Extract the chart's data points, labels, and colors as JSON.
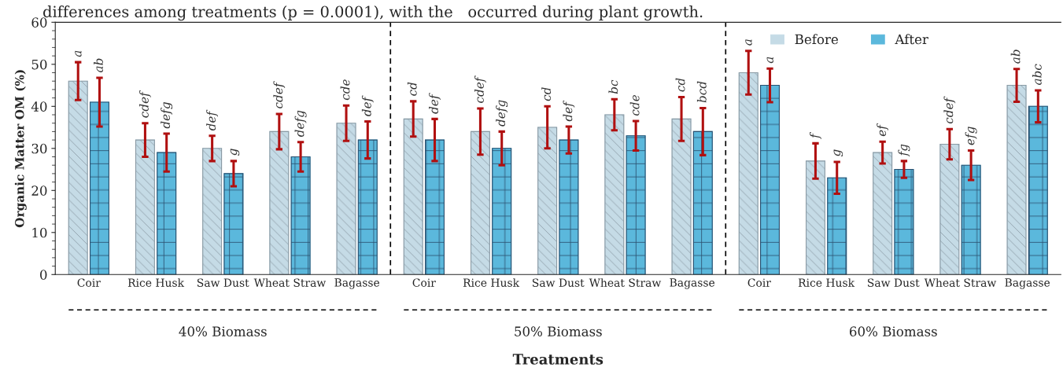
{
  "chart_data": {
    "type": "bar",
    "title": "differences among treatments (p = 0.0001), with the",
    "subtitle": "occurred during plant growth.",
    "xlabel": "Treatments",
    "ylabel": "Organic Matter OM (%)",
    "categories": [
      "Coir",
      "Rice Husk",
      "Saw Dust",
      "Wheat Straw",
      "Bagasse",
      "Coir",
      "Rice Husk",
      "Saw Dust",
      "Wheat Straw",
      "Bagasse",
      "Coir",
      "Rice Husk",
      "Saw Dust",
      "Wheat Straw",
      "Bagasse"
    ],
    "series": [
      {
        "name": "Before",
        "color": "#c5dbe6",
        "values": [
          46,
          32,
          30,
          34,
          36,
          37,
          34,
          35,
          38,
          37,
          48,
          27,
          29,
          31,
          45
        ],
        "errors": [
          4.5,
          4,
          3,
          4.2,
          4.2,
          4.2,
          5.5,
          5,
          3.7,
          5.2,
          5.2,
          4.2,
          2.6,
          3.6,
          3.9
        ],
        "value_labels": [
          "a",
          "cdef",
          "def",
          "cdef",
          "cde",
          "cd",
          "cdef",
          "cd",
          "bc",
          "cd",
          "a",
          "f",
          "ef",
          "cdef",
          "ab"
        ]
      },
      {
        "name": "After",
        "color": "#5bb8dc",
        "values": [
          41,
          29,
          24,
          28,
          32,
          32,
          30,
          32,
          33,
          34,
          45,
          23,
          25,
          26,
          40
        ],
        "errors": [
          5.8,
          4.5,
          3,
          3.5,
          4.4,
          5,
          4,
          3.2,
          3.5,
          5.6,
          4,
          3.8,
          2,
          3.5,
          3.8
        ],
        "value_labels": [
          "ab",
          "defg",
          "g",
          "defg",
          "def",
          "def",
          "defg",
          "def",
          "cde",
          "bcd",
          "a",
          "g",
          "fg",
          "efg",
          "abc"
        ]
      }
    ],
    "annotations": [
      "40% Biomass",
      "50% Biomass",
      "60% Biomass"
    ],
    "ylim": [
      0,
      60
    ],
    "yticks": [
      0,
      10,
      20,
      30,
      40,
      50,
      60
    ],
    "legend": "top right",
    "grid": false
  }
}
